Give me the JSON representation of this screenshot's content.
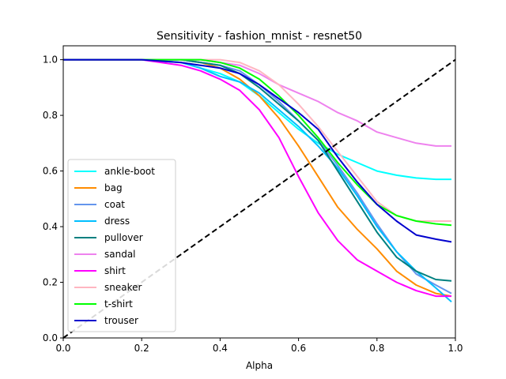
{
  "chart_data": {
    "type": "line",
    "title": "Sensitivity - fashion_mnist - resnet50",
    "xlabel": "Alpha",
    "ylabel": "",
    "xlim": [
      0,
      1
    ],
    "ylim": [
      0,
      1.05
    ],
    "xticks": [
      0.0,
      0.2,
      0.4,
      0.6,
      0.8,
      1.0
    ],
    "xtick_labels": [
      "0.0",
      "0.2",
      "0.4",
      "0.6",
      "0.8",
      "1.0"
    ],
    "yticks": [
      0.0,
      0.2,
      0.4,
      0.6,
      0.8,
      1.0
    ],
    "ytick_labels": [
      "0.0",
      "0.2",
      "0.4",
      "0.6",
      "0.8",
      "1.0"
    ],
    "grid": false,
    "legend_position": "center-left",
    "x": [
      0.0,
      0.1,
      0.2,
      0.3,
      0.35,
      0.4,
      0.45,
      0.5,
      0.55,
      0.6,
      0.65,
      0.7,
      0.75,
      0.8,
      0.85,
      0.9,
      0.95,
      0.99
    ],
    "series": [
      {
        "name": "ankle-boot",
        "color": "#00ffff",
        "values": [
          1.0,
          1.0,
          1.0,
          0.99,
          0.97,
          0.95,
          0.92,
          0.87,
          0.81,
          0.75,
          0.7,
          0.66,
          0.63,
          0.6,
          0.585,
          0.575,
          0.57,
          0.57
        ]
      },
      {
        "name": "bag",
        "color": "#ff8c00",
        "values": [
          1.0,
          1.0,
          1.0,
          1.0,
          0.99,
          0.97,
          0.93,
          0.87,
          0.79,
          0.69,
          0.58,
          0.47,
          0.39,
          0.32,
          0.24,
          0.19,
          0.16,
          0.15
        ]
      },
      {
        "name": "coat",
        "color": "#6495ed",
        "values": [
          1.0,
          1.0,
          1.0,
          1.0,
          0.99,
          0.98,
          0.96,
          0.91,
          0.85,
          0.78,
          0.71,
          0.62,
          0.52,
          0.41,
          0.31,
          0.23,
          0.19,
          0.16
        ]
      },
      {
        "name": "dress",
        "color": "#00bfff",
        "values": [
          1.0,
          1.0,
          1.0,
          0.99,
          0.97,
          0.94,
          0.92,
          0.88,
          0.82,
          0.76,
          0.69,
          0.61,
          0.51,
          0.4,
          0.31,
          0.24,
          0.18,
          0.13
        ]
      },
      {
        "name": "pullover",
        "color": "#008080",
        "values": [
          1.0,
          1.0,
          1.0,
          1.0,
          0.99,
          0.98,
          0.95,
          0.9,
          0.84,
          0.78,
          0.71,
          0.6,
          0.49,
          0.38,
          0.29,
          0.24,
          0.21,
          0.205
        ]
      },
      {
        "name": "sandal",
        "color": "#ee82ee",
        "values": [
          1.0,
          1.0,
          1.0,
          1.0,
          1.0,
          0.99,
          0.98,
          0.95,
          0.91,
          0.88,
          0.85,
          0.81,
          0.78,
          0.74,
          0.72,
          0.7,
          0.69,
          0.69
        ]
      },
      {
        "name": "shirt",
        "color": "#ff00ff",
        "values": [
          1.0,
          1.0,
          1.0,
          0.98,
          0.96,
          0.93,
          0.89,
          0.82,
          0.72,
          0.58,
          0.45,
          0.35,
          0.28,
          0.24,
          0.2,
          0.17,
          0.15,
          0.15
        ]
      },
      {
        "name": "sneaker",
        "color": "#ffb6c1",
        "values": [
          1.0,
          1.0,
          1.0,
          1.0,
          1.0,
          1.0,
          0.99,
          0.96,
          0.91,
          0.84,
          0.76,
          0.67,
          0.58,
          0.49,
          0.44,
          0.42,
          0.42,
          0.42
        ]
      },
      {
        "name": "t-shirt",
        "color": "#00ff00",
        "values": [
          1.0,
          1.0,
          1.0,
          1.0,
          1.0,
          0.99,
          0.97,
          0.93,
          0.87,
          0.8,
          0.72,
          0.63,
          0.55,
          0.48,
          0.44,
          0.42,
          0.41,
          0.405
        ]
      },
      {
        "name": "trouser",
        "color": "#0000cd",
        "values": [
          1.0,
          1.0,
          1.0,
          0.99,
          0.98,
          0.97,
          0.95,
          0.91,
          0.86,
          0.81,
          0.75,
          0.65,
          0.56,
          0.48,
          0.42,
          0.37,
          0.355,
          0.345
        ]
      }
    ],
    "reference_line": {
      "color": "#000000",
      "x": [
        0,
        1
      ],
      "y": [
        0,
        1
      ]
    }
  }
}
